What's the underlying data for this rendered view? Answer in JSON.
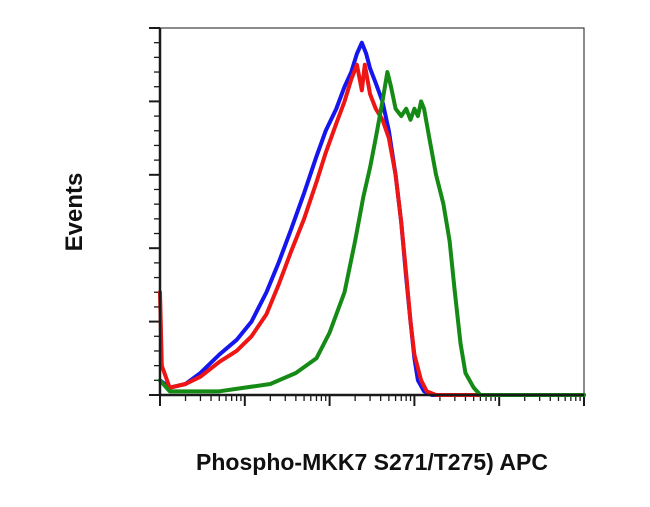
{
  "chart_data": {
    "type": "line",
    "title": "",
    "xlabel": "Phospho-MKK7 S271/T275) APC",
    "ylabel": "Events",
    "xscale": "log",
    "xlim": [
      1,
      100000
    ],
    "ylim": [
      0,
      100
    ],
    "grid": false,
    "legend": "none",
    "tick_labels_shown": false,
    "series": [
      {
        "color": "#1515ee",
        "points": [
          [
            1,
            4
          ],
          [
            1.3,
            2
          ],
          [
            2,
            3
          ],
          [
            3,
            6
          ],
          [
            5,
            11
          ],
          [
            8,
            15
          ],
          [
            12,
            20
          ],
          [
            18,
            28
          ],
          [
            25,
            36
          ],
          [
            35,
            45
          ],
          [
            50,
            55
          ],
          [
            70,
            65
          ],
          [
            90,
            72
          ],
          [
            120,
            78
          ],
          [
            150,
            84
          ],
          [
            180,
            88
          ],
          [
            210,
            93
          ],
          [
            240,
            96
          ],
          [
            270,
            93
          ],
          [
            300,
            89
          ],
          [
            350,
            85
          ],
          [
            420,
            80
          ],
          [
            500,
            72
          ],
          [
            600,
            60
          ],
          [
            700,
            47
          ],
          [
            800,
            32
          ],
          [
            900,
            20
          ],
          [
            1000,
            10
          ],
          [
            1100,
            4
          ],
          [
            1300,
            1
          ],
          [
            1600,
            0
          ],
          [
            2500,
            0
          ],
          [
            100000,
            0
          ]
        ]
      },
      {
        "color": "#ee1515",
        "points": [
          [
            1,
            28
          ],
          [
            1.05,
            8
          ],
          [
            1.3,
            2
          ],
          [
            2,
            3
          ],
          [
            3,
            5
          ],
          [
            5,
            9
          ],
          [
            8,
            12
          ],
          [
            12,
            16
          ],
          [
            18,
            22
          ],
          [
            25,
            30
          ],
          [
            35,
            39
          ],
          [
            50,
            48
          ],
          [
            70,
            58
          ],
          [
            90,
            66
          ],
          [
            120,
            74
          ],
          [
            150,
            80
          ],
          [
            180,
            86
          ],
          [
            210,
            90
          ],
          [
            240,
            83
          ],
          [
            260,
            90
          ],
          [
            300,
            82
          ],
          [
            350,
            78
          ],
          [
            420,
            75
          ],
          [
            500,
            70
          ],
          [
            600,
            60
          ],
          [
            700,
            47
          ],
          [
            800,
            33
          ],
          [
            900,
            20
          ],
          [
            1000,
            11
          ],
          [
            1200,
            4
          ],
          [
            1400,
            1
          ],
          [
            1800,
            0
          ],
          [
            2500,
            0
          ],
          [
            100000,
            0
          ]
        ]
      },
      {
        "color": "#158a15",
        "points": [
          [
            1,
            4
          ],
          [
            1.3,
            1
          ],
          [
            2,
            1
          ],
          [
            5,
            1
          ],
          [
            10,
            2
          ],
          [
            20,
            3
          ],
          [
            40,
            6
          ],
          [
            70,
            10
          ],
          [
            100,
            17
          ],
          [
            150,
            28
          ],
          [
            200,
            42
          ],
          [
            250,
            54
          ],
          [
            300,
            62
          ],
          [
            350,
            70
          ],
          [
            420,
            80
          ],
          [
            480,
            88
          ],
          [
            530,
            84
          ],
          [
            600,
            78
          ],
          [
            700,
            76
          ],
          [
            800,
            78
          ],
          [
            900,
            75
          ],
          [
            1000,
            78
          ],
          [
            1100,
            76
          ],
          [
            1200,
            80
          ],
          [
            1300,
            78
          ],
          [
            1500,
            70
          ],
          [
            1800,
            60
          ],
          [
            2200,
            52
          ],
          [
            2600,
            42
          ],
          [
            3000,
            28
          ],
          [
            3500,
            14
          ],
          [
            4000,
            6
          ],
          [
            5000,
            2
          ],
          [
            6000,
            0
          ],
          [
            8000,
            0
          ],
          [
            100000,
            0
          ]
        ]
      }
    ]
  }
}
